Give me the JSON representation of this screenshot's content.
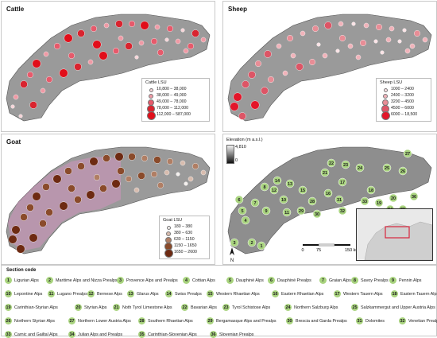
{
  "panels": [
    {
      "id": "cattle",
      "title": "Cattle",
      "legend_title": "Cattle LSU",
      "legend": [
        "10,800 – 38,000",
        "38,000 – 49,000",
        "49,000 – 78,000",
        "78,000 – 112,000",
        "112,000 – 587,000"
      ]
    },
    {
      "id": "sheep",
      "title": "Sheep",
      "legend_title": "Sheep LSU",
      "legend": [
        "1000 – 2400",
        "2400 – 3200",
        "3200 – 4500",
        "4500 – 6000",
        "6000 – 18,500"
      ]
    },
    {
      "id": "goat",
      "title": "Goat",
      "legend_title": "Goat LSU",
      "legend": [
        "180 – 380",
        "380 – 630",
        "630 – 1150",
        "1150 – 1650",
        "1650 – 2600"
      ]
    },
    {
      "id": "elevation"
    }
  ],
  "elevation": {
    "title": "Elevation (m a.s.l.)",
    "max": "4,810",
    "min": "0"
  },
  "scale": {
    "labels": [
      "0",
      "75",
      "150 km"
    ]
  },
  "north_arrow": "N",
  "colors": {
    "cattle": [
      "#f6d4d8",
      "#ef9aa5",
      "#e65a6b",
      "#d9242f",
      "#e10e1a"
    ],
    "sheep": [
      "#fbe3e6",
      "#f1b3ba",
      "#e88d96",
      "#dd5566",
      "#e3162a"
    ],
    "goat": [
      "#f4f0ee",
      "#d8bcae",
      "#b07e64",
      "#8a4b2b",
      "#6d2a12"
    ],
    "section": "#a9d47f"
  },
  "section_title": "Section code",
  "sections": [
    {
      "n": "1",
      "name": "Ligurian Alps"
    },
    {
      "n": "2",
      "name": "Maritime Alps and Nizza Prealps"
    },
    {
      "n": "3",
      "name": "Provence Alps and Prealps"
    },
    {
      "n": "4",
      "name": "Cottian Alps"
    },
    {
      "n": "5",
      "name": "Dauphiné Alps"
    },
    {
      "n": "6",
      "name": "Dauphiné Prealps"
    },
    {
      "n": "7",
      "name": "Graian Alps"
    },
    {
      "n": "8",
      "name": "Savoy Prealps"
    },
    {
      "n": "9",
      "name": "Pennin Alps"
    },
    {
      "n": "10",
      "name": "Lepontine Alps"
    },
    {
      "n": "11",
      "name": "Lugano Prealps"
    },
    {
      "n": "12",
      "name": "Bernese Alps"
    },
    {
      "n": "13",
      "name": "Glarus Alps"
    },
    {
      "n": "14",
      "name": "Swiss Prealps"
    },
    {
      "n": "15",
      "name": "Western Rhaetian Alps"
    },
    {
      "n": "16",
      "name": "Eastern Rhaetian Alps"
    },
    {
      "n": "17",
      "name": "Western Tauern Alps"
    },
    {
      "n": "18",
      "name": "Eastern Tauern Alps"
    },
    {
      "n": "19",
      "name": "Carinthian-Styrian Alps"
    },
    {
      "n": "20",
      "name": "Styrian Alps"
    },
    {
      "n": "21",
      "name": "Noth Tyrol Limestone Alps"
    },
    {
      "n": "22",
      "name": "Bavarian Alps"
    },
    {
      "n": "23",
      "name": "Tyrol Schistose Alps"
    },
    {
      "n": "24",
      "name": "Northern Salzburg Alps"
    },
    {
      "n": "25",
      "name": "Salzkammergut and Upper Austria Alps"
    },
    {
      "n": "26",
      "name": "Northern Styrian Alps"
    },
    {
      "n": "27",
      "name": "Northern Lower Austria Alps"
    },
    {
      "n": "28",
      "name": "Southern Rhaetian Alps"
    },
    {
      "n": "29",
      "name": "Bergamasque Alps and Prealps"
    },
    {
      "n": "30",
      "name": "Brescia and Garda Prealps"
    },
    {
      "n": "31",
      "name": "Dolomites"
    },
    {
      "n": "32",
      "name": "Venetian Prealps"
    },
    {
      "n": "33",
      "name": "Carnic and Gailtal Alps"
    },
    {
      "n": "34",
      "name": "Julian Alps and Prealps"
    },
    {
      "n": "35",
      "name": "Carinthian-Slovenian Alps"
    },
    {
      "n": "36",
      "name": "Slovenian Prealps"
    }
  ]
}
